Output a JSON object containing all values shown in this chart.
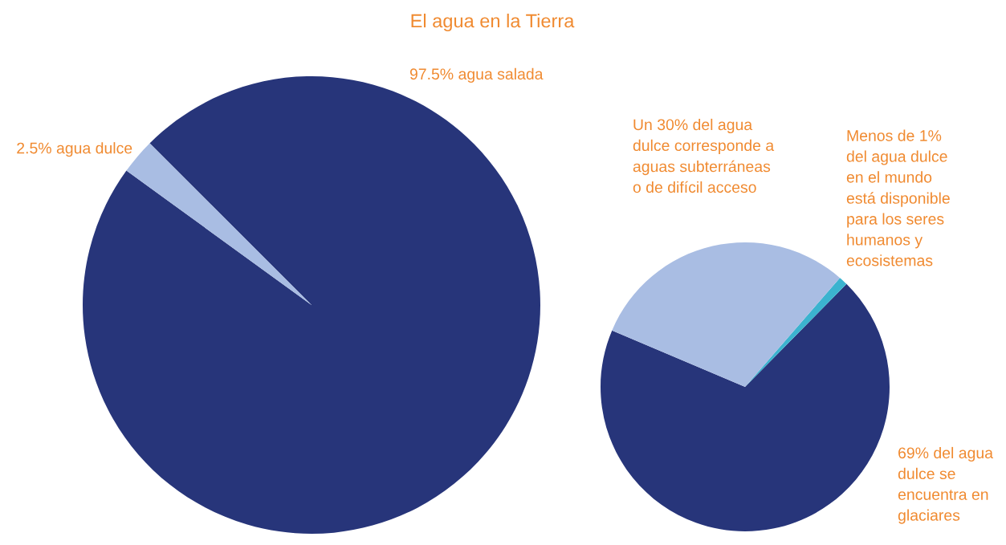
{
  "chart_data": [
    {
      "type": "pie",
      "title": "El agua en la Tierra",
      "categories": [
        "97.5% agua salada",
        "2.5% agua dulce"
      ],
      "values": [
        97.5,
        2.5
      ],
      "colors": [
        "#27357a",
        "#a9bde3"
      ]
    },
    {
      "type": "pie",
      "categories": [
        "69% del agua\ndulce se\nencuentra en\nglaciares",
        "Menos de 1%\ndel agua dulce\nen el mundo\nestá disponible\npara los seres\nhumanos y\necosistemas",
        "Un 30% del agua\ndulce corresponde a\naguas subterráneas\no de difícil acceso"
      ],
      "values": [
        69,
        1,
        30
      ],
      "colors": [
        "#27357a",
        "#3bb3cf",
        "#a9bde3"
      ]
    }
  ]
}
